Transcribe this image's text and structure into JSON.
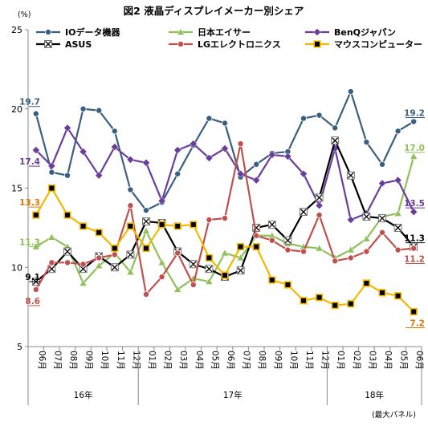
{
  "chart_data": {
    "type": "line",
    "title": "図2 液晶ディスプレイメーカー別シェア",
    "ylabel": "(%)",
    "note": "(最大パネル)",
    "ylim": [
      5,
      25
    ],
    "yticks": [
      5,
      10,
      15,
      20,
      25
    ],
    "grid": false,
    "legend_position": "top",
    "categories": [
      "06月",
      "07月",
      "08月",
      "09月",
      "10月",
      "11月",
      "12月",
      "01月",
      "02月",
      "03月",
      "04月",
      "05月",
      "06月",
      "07月",
      "08月",
      "09月",
      "10月",
      "11月",
      "12月",
      "01月",
      "02月",
      "03月",
      "04月",
      "05月",
      "06月"
    ],
    "year_groups": [
      {
        "label": "16年",
        "start": 0,
        "end": 6
      },
      {
        "label": "17年",
        "start": 7,
        "end": 18
      },
      {
        "label": "18年",
        "start": 19,
        "end": 24
      }
    ],
    "series": [
      {
        "name": "IOデータ機器",
        "color": "#3a5f7f",
        "marker": "circle",
        "values": [
          19.7,
          16.0,
          15.8,
          20.0,
          19.9,
          18.6,
          14.9,
          13.6,
          14.1,
          15.9,
          17.7,
          19.4,
          19.1,
          15.7,
          16.5,
          17.2,
          17.3,
          19.4,
          19.6,
          18.8,
          21.1,
          17.9,
          16.5,
          18.6,
          19.2
        ],
        "label_first": "19.7",
        "label_last": "19.2"
      },
      {
        "name": "日本エイサー",
        "color": "#8fc15a",
        "marker": "triangle",
        "values": [
          11.3,
          11.9,
          11.3,
          9.0,
          10.1,
          10.9,
          9.7,
          12.3,
          10.3,
          8.6,
          9.3,
          9.1,
          10.9,
          10.6,
          12.0,
          12.0,
          11.5,
          11.3,
          11.2,
          10.6,
          11.1,
          11.8,
          13.2,
          13.4,
          17.0
        ],
        "label_first": "11.3",
        "label_last": "17.0"
      },
      {
        "name": "BenQジャパン",
        "color": "#6a3d9a",
        "marker": "diamond",
        "values": [
          17.4,
          16.4,
          18.8,
          17.3,
          15.8,
          17.6,
          16.8,
          16.6,
          14.2,
          17.4,
          17.8,
          16.9,
          17.5,
          15.9,
          15.5,
          17.1,
          17.0,
          15.9,
          13.9,
          17.5,
          13.0,
          13.4,
          15.3,
          15.5,
          13.5
        ],
        "label_first": "17.4",
        "label_last": "13.5"
      },
      {
        "name": "ASUS",
        "color": "#000000",
        "marker": "x",
        "values": [
          9.1,
          9.9,
          11.0,
          9.9,
          10.7,
          10.0,
          10.8,
          12.9,
          12.8,
          11.0,
          10.2,
          9.9,
          9.4,
          9.8,
          12.5,
          12.7,
          11.7,
          13.5,
          14.4,
          18.0,
          15.8,
          13.2,
          13.1,
          12.5,
          11.3
        ],
        "label_first": "9.1",
        "label_last": "11.3"
      },
      {
        "name": "LGエレクトロニクス",
        "color": "#c0504d",
        "marker": "circle",
        "values": [
          8.6,
          10.3,
          10.3,
          10.2,
          10.6,
          10.8,
          13.9,
          8.3,
          9.4,
          10.9,
          8.9,
          13.0,
          13.1,
          17.8,
          12.0,
          11.7,
          11.1,
          11.0,
          13.3,
          10.4,
          10.6,
          11.0,
          12.2,
          11.1,
          11.2
        ],
        "label_first": "8.6",
        "label_last": "11.2"
      },
      {
        "name": "マウスコンピューター",
        "color": "#f5b800",
        "marker": "square",
        "values": [
          13.3,
          15.0,
          13.3,
          12.6,
          12.2,
          11.2,
          12.6,
          11.2,
          12.7,
          12.6,
          12.7,
          10.6,
          9.5,
          11.3,
          11.3,
          9.2,
          8.9,
          7.9,
          8.1,
          7.6,
          7.7,
          9.0,
          8.4,
          8.2,
          7.2
        ],
        "label_first": "13.3",
        "label_last": "7.2"
      }
    ]
  }
}
